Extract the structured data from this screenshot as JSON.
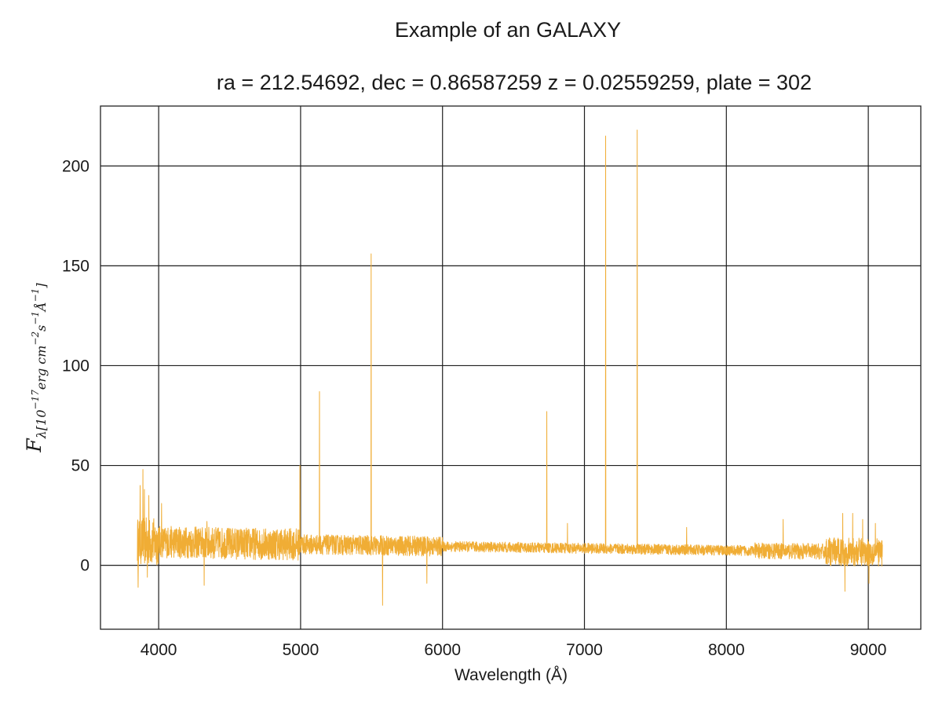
{
  "chart_data": {
    "type": "line",
    "title": "Example of an GALAXY",
    "subtitle": "ra = 212.54692, dec = 0.86587259 z = 0.02559259, plate = 302",
    "xlabel": "Wavelength (Å)",
    "ylabel": {
      "symbol": "F",
      "subscript": "λ[10",
      "exp1": "−17",
      "mid1": "erg cm",
      "exp2": "−2",
      "mid2": "s",
      "exp3": "−1",
      "mid3": "Å",
      "exp4": "−1",
      "end": "]"
    },
    "xlim": [
      3590,
      9370
    ],
    "ylim": [
      -32,
      230
    ],
    "xticks": [
      4000,
      5000,
      6000,
      7000,
      8000,
      9000
    ],
    "yticks": [
      0,
      50,
      100,
      150,
      200
    ],
    "grid": true,
    "series": [
      {
        "color": "#f0ad35",
        "spectrum_range": [
          3850,
          9100
        ],
        "continuum": [
          [
            3850,
            12
          ],
          [
            4500,
            11
          ],
          [
            5500,
            10
          ],
          [
            6000,
            9.5
          ],
          [
            7000,
            8.5
          ],
          [
            8000,
            7.5
          ],
          [
            9100,
            6.5
          ]
        ],
        "emission_lines": [
          [
            3869,
            40
          ],
          [
            3889,
            48
          ],
          [
            3900,
            38
          ],
          [
            3930,
            35
          ],
          [
            4020,
            31
          ],
          [
            4340,
            22
          ],
          [
            4995,
            50
          ],
          [
            5133,
            87
          ],
          [
            5497,
            156
          ],
          [
            5578,
            28
          ],
          [
            5890,
            31
          ],
          [
            6735,
            77
          ],
          [
            6880,
            21
          ],
          [
            7150,
            215
          ],
          [
            7372,
            218
          ],
          [
            7720,
            19
          ],
          [
            8400,
            23
          ],
          [
            8820,
            26
          ],
          [
            8890,
            26
          ],
          [
            8960,
            23
          ],
          [
            9050,
            21
          ]
        ],
        "absorption_lines": [
          [
            3855,
            -11
          ],
          [
            3920,
            -6
          ],
          [
            4320,
            -10
          ],
          [
            5578,
            -20
          ],
          [
            5890,
            -9
          ],
          [
            8835,
            -13
          ],
          [
            9005,
            -9
          ]
        ]
      }
    ]
  }
}
